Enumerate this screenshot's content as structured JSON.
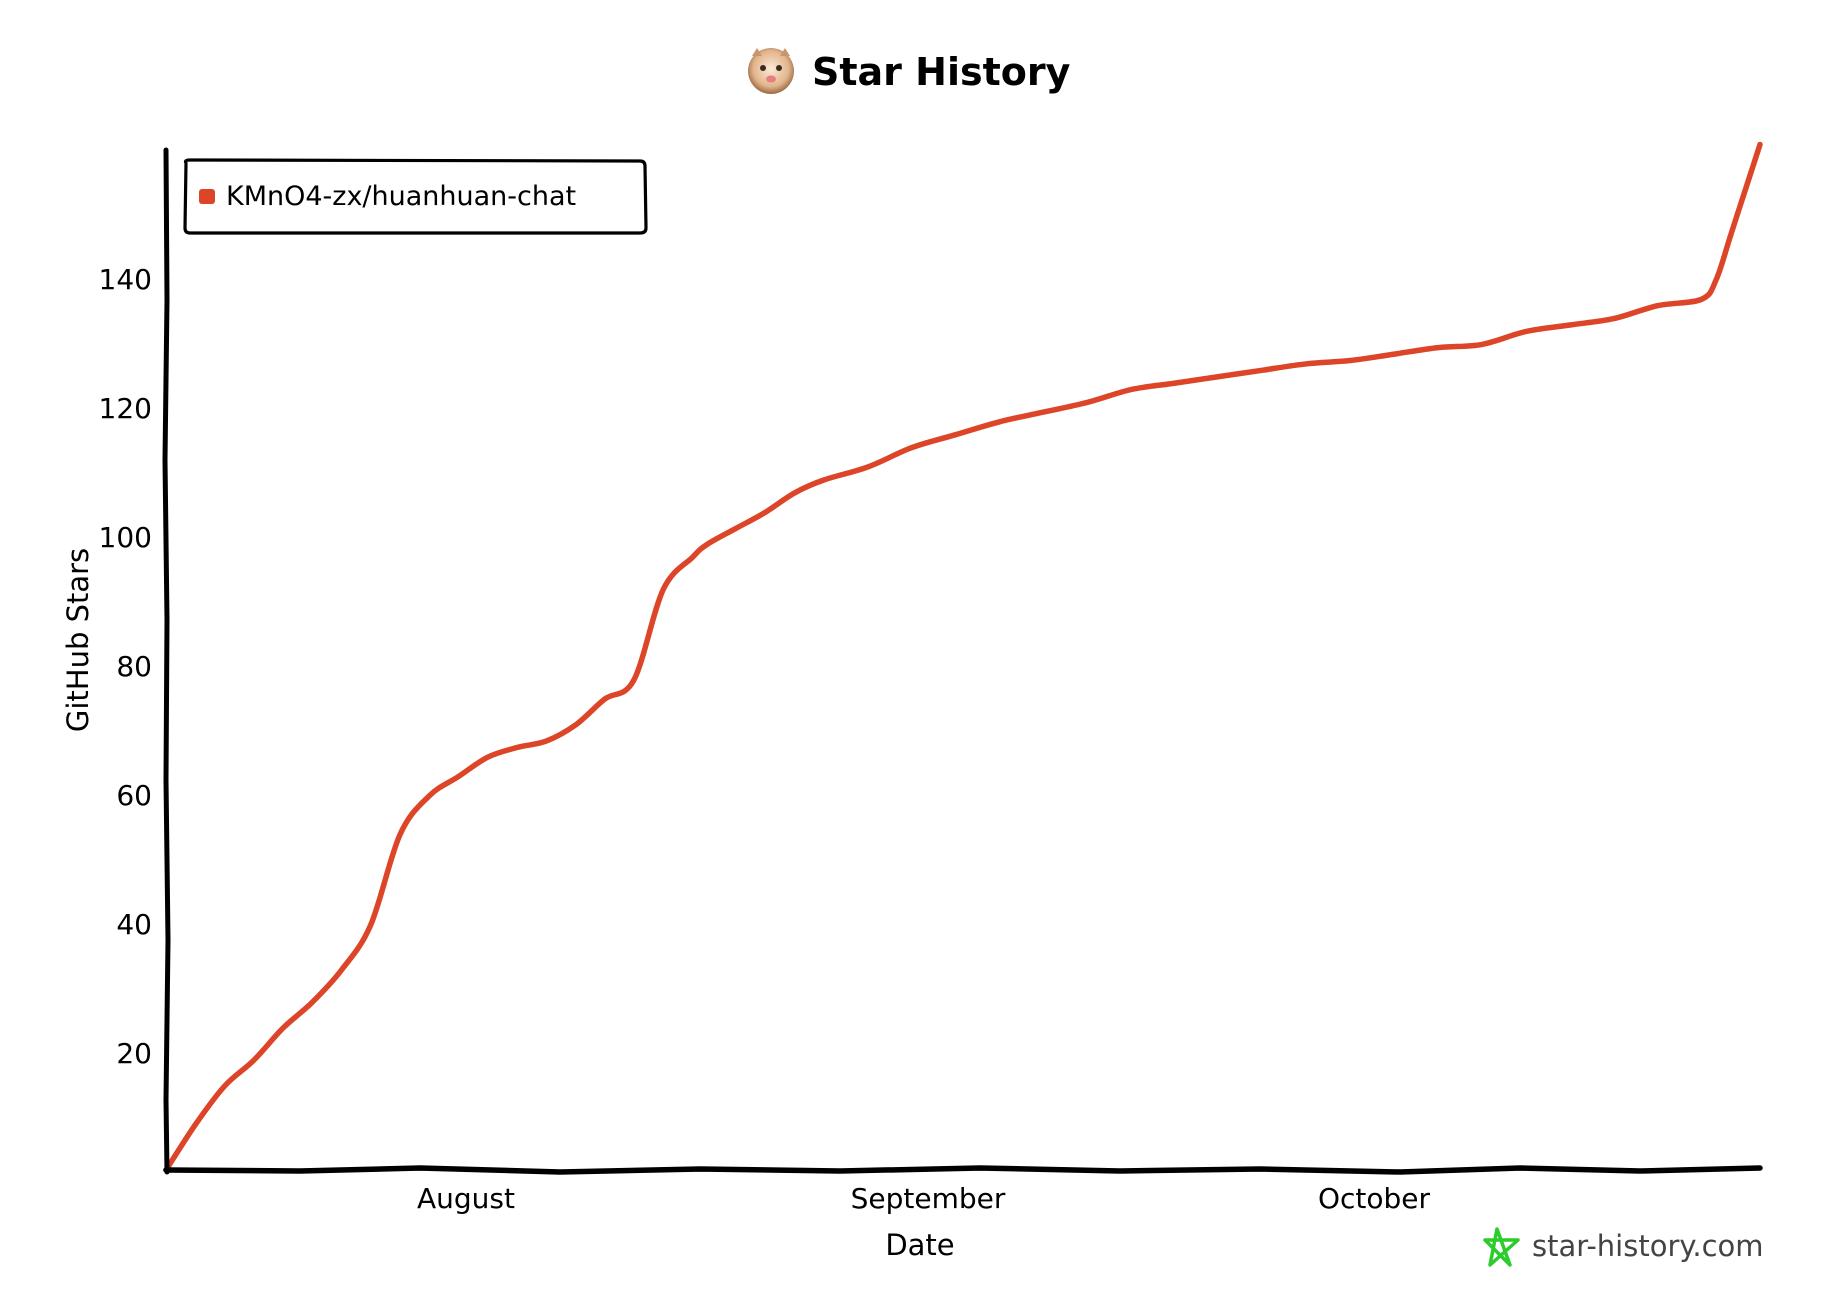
{
  "header": {
    "title": "Star History",
    "avatar_icon": "cat-avatar-icon"
  },
  "chart_data": {
    "type": "line",
    "title": "Star History",
    "xlabel": "Date",
    "ylabel": "GitHub Stars",
    "x_tick_labels": [
      "August",
      "September",
      "October"
    ],
    "y_ticks": [
      20,
      40,
      60,
      80,
      100,
      120,
      140
    ],
    "ylim": [
      0,
      159
    ],
    "xlim": [
      "2023-07-13",
      "2023-10-30"
    ],
    "grid": false,
    "legend_position": "top-left",
    "series": [
      {
        "name": "KMnO4-zx/huanhuan-chat",
        "color": "#dd4528",
        "x": [
          "2023-07-13",
          "2023-07-15",
          "2023-07-17",
          "2023-07-19",
          "2023-07-21",
          "2023-07-23",
          "2023-07-25",
          "2023-07-27",
          "2023-07-29",
          "2023-07-31",
          "2023-08-02",
          "2023-08-04",
          "2023-08-06",
          "2023-08-08",
          "2023-08-10",
          "2023-08-12",
          "2023-08-14",
          "2023-08-16",
          "2023-08-18",
          "2023-08-19",
          "2023-08-21",
          "2023-08-23",
          "2023-08-25",
          "2023-08-27",
          "2023-08-30",
          "2023-09-02",
          "2023-09-05",
          "2023-09-08",
          "2023-09-11",
          "2023-09-14",
          "2023-09-17",
          "2023-09-20",
          "2023-09-23",
          "2023-09-26",
          "2023-09-29",
          "2023-10-02",
          "2023-10-05",
          "2023-10-08",
          "2023-10-11",
          "2023-10-14",
          "2023-10-17",
          "2023-10-20",
          "2023-10-23",
          "2023-10-26",
          "2023-10-27",
          "2023-10-28",
          "2023-10-29",
          "2023-10-30"
        ],
        "values": [
          0,
          7,
          13,
          17,
          22,
          26,
          31,
          38,
          52,
          58,
          61,
          64,
          65.5,
          66.5,
          69,
          73,
          76,
          90,
          95,
          97,
          99.5,
          102,
          105,
          107,
          109,
          112,
          114,
          116,
          117.5,
          119,
          121,
          122,
          123,
          124,
          125,
          125.5,
          126.5,
          127.5,
          128,
          130,
          131,
          132,
          134,
          135,
          138,
          145,
          152,
          159
        ]
      }
    ]
  },
  "watermark": {
    "text": "star-history.com",
    "icon": "star-logo-icon",
    "color": "#2bcc2b"
  }
}
